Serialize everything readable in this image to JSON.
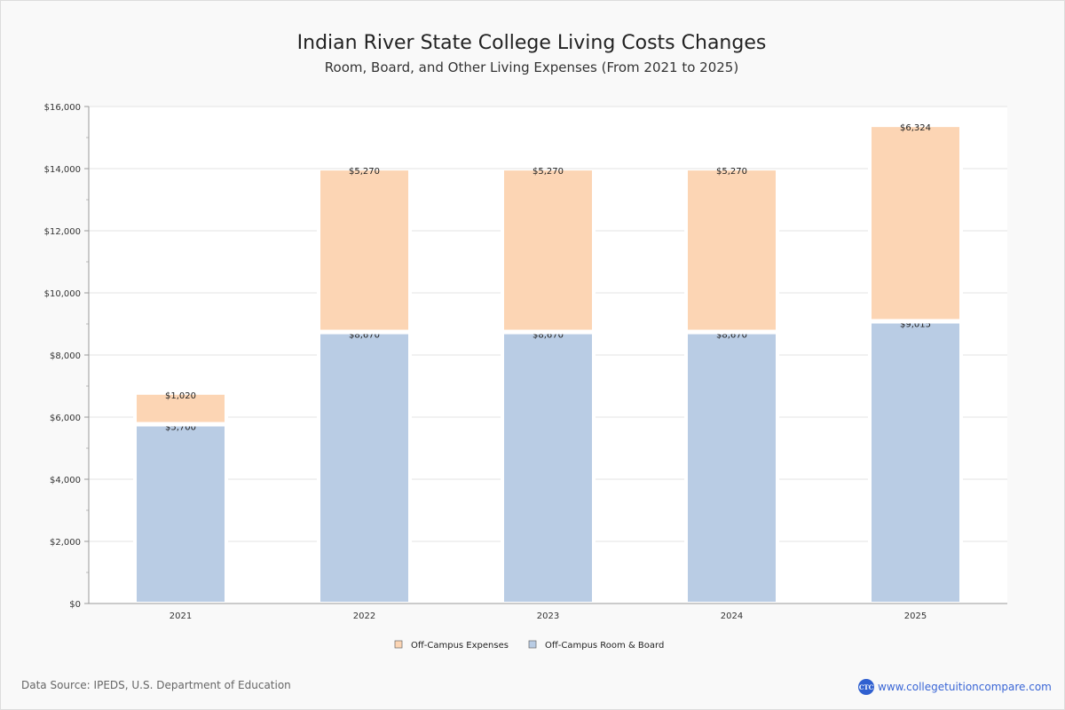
{
  "title": "Indian River State College Living Costs Changes",
  "subtitle": "Room, Board, and Other Living Expenses (From 2021 to 2025)",
  "source": "Data Source: IPEDS, U.S. Department of Education",
  "brand": {
    "logo_text": "CTC",
    "url": "www.collegetuitioncompare.com"
  },
  "colors": {
    "expenses": "#fcd5b4",
    "room_board": "#b9cce4"
  },
  "chart_data": {
    "type": "bar",
    "stacked": true,
    "categories": [
      "2021",
      "2022",
      "2023",
      "2024",
      "2025"
    ],
    "series": [
      {
        "name": "Off-Campus Room & Board",
        "values": [
          5700,
          8670,
          8670,
          8670,
          9015
        ],
        "labels": [
          "$5,700",
          "$8,670",
          "$8,670",
          "$8,670",
          "$9,015"
        ]
      },
      {
        "name": "Off-Campus Expenses",
        "values": [
          1020,
          5270,
          5270,
          5270,
          6324
        ],
        "labels": [
          "$1,020",
          "$5,270",
          "$5,270",
          "$5,270",
          "$6,324"
        ]
      }
    ],
    "ylim": [
      0,
      16000
    ],
    "yticks": [
      0,
      2000,
      4000,
      6000,
      8000,
      10000,
      12000,
      14000,
      16000
    ],
    "ytick_labels": [
      "$0",
      "$2,000",
      "$4,000",
      "$6,000",
      "$8,000",
      "$10,000",
      "$12,000",
      "$14,000",
      "$16,000"
    ],
    "legend": [
      "Off-Campus Expenses",
      "Off-Campus Room & Board"
    ],
    "legend_position": "bottom",
    "grid": true
  }
}
